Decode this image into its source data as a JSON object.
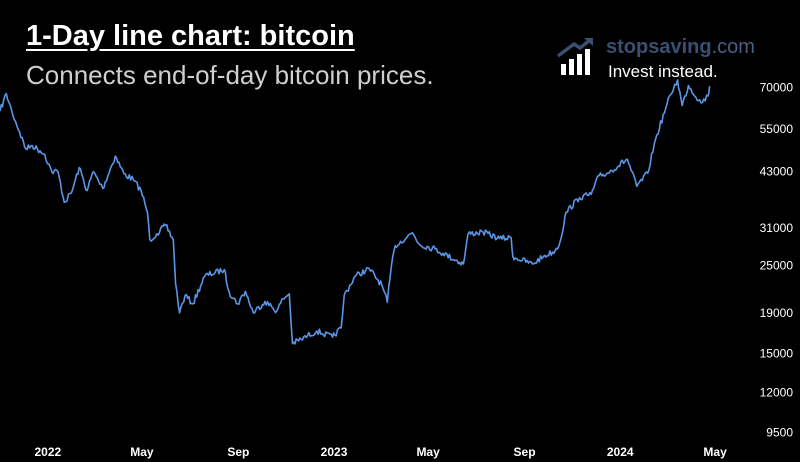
{
  "header": {
    "title": "1-Day line chart: bitcoin",
    "subtitle": "Connects end-of-day bitcoin prices."
  },
  "brand": {
    "name": "stopsaving",
    "domain": ".com",
    "tagline": "Invest instead.",
    "icon": "bar-chart-arrow-icon",
    "color": "#3a4f74"
  },
  "chart_data": {
    "type": "line",
    "title": "1-Day line chart: bitcoin",
    "subtitle": "Connects end-of-day bitcoin prices.",
    "yscale": "log",
    "ylim": [
      9000,
      82000
    ],
    "xlim": [
      "2021-11-01",
      "2024-05-20"
    ],
    "line_color": "#5b95e6",
    "grid": false,
    "y_ticks": [
      9500,
      12000,
      15000,
      19000,
      25000,
      31000,
      43000,
      55000,
      70000
    ],
    "x_ticks": [
      {
        "label": "2022",
        "date": "2022-01-01"
      },
      {
        "label": "May",
        "date": "2022-05-01"
      },
      {
        "label": "Sep",
        "date": "2022-09-01"
      },
      {
        "label": "2023",
        "date": "2023-01-01"
      },
      {
        "label": "May",
        "date": "2023-05-01"
      },
      {
        "label": "Sep",
        "date": "2023-09-01"
      },
      {
        "label": "2024",
        "date": "2024-01-01"
      },
      {
        "label": "May",
        "date": "2024-05-01"
      }
    ],
    "series": [
      {
        "name": "",
        "points": [
          [
            "2021-11-01",
            61000
          ],
          [
            "2021-11-09",
            67500
          ],
          [
            "2021-11-16",
            61000
          ],
          [
            "2021-11-26",
            54000
          ],
          [
            "2021-12-04",
            49000
          ],
          [
            "2021-12-12",
            50000
          ],
          [
            "2021-12-22",
            48500
          ],
          [
            "2021-12-28",
            47500
          ],
          [
            "2022-01-06",
            43000
          ],
          [
            "2022-01-14",
            43000
          ],
          [
            "2022-01-22",
            36000
          ],
          [
            "2022-01-31",
            38000
          ],
          [
            "2022-02-10",
            44000
          ],
          [
            "2022-02-20",
            38500
          ],
          [
            "2022-02-28",
            43000
          ],
          [
            "2022-03-12",
            39000
          ],
          [
            "2022-03-28",
            47000
          ],
          [
            "2022-04-08",
            42500
          ],
          [
            "2022-04-20",
            41000
          ],
          [
            "2022-04-30",
            38500
          ],
          [
            "2022-05-08",
            34000
          ],
          [
            "2022-05-11",
            29000
          ],
          [
            "2022-05-20",
            30000
          ],
          [
            "2022-05-31",
            31500
          ],
          [
            "2022-06-10",
            29000
          ],
          [
            "2022-06-13",
            22500
          ],
          [
            "2022-06-18",
            19000
          ],
          [
            "2022-06-25",
            21000
          ],
          [
            "2022-07-05",
            20000
          ],
          [
            "2022-07-20",
            23500
          ],
          [
            "2022-08-14",
            24400
          ],
          [
            "2022-08-20",
            21500
          ],
          [
            "2022-08-31",
            20000
          ],
          [
            "2022-09-10",
            21500
          ],
          [
            "2022-09-20",
            19000
          ],
          [
            "2022-10-05",
            20300
          ],
          [
            "2022-10-20",
            19200
          ],
          [
            "2022-10-28",
            20600
          ],
          [
            "2022-11-05",
            21200
          ],
          [
            "2022-11-09",
            15900
          ],
          [
            "2022-11-20",
            16300
          ],
          [
            "2022-12-10",
            17100
          ],
          [
            "2022-12-30",
            16500
          ],
          [
            "2023-01-10",
            17400
          ],
          [
            "2023-01-14",
            21000
          ],
          [
            "2023-01-28",
            23500
          ],
          [
            "2023-02-15",
            24500
          ],
          [
            "2023-03-03",
            22300
          ],
          [
            "2023-03-10",
            20200
          ],
          [
            "2023-03-15",
            24800
          ],
          [
            "2023-03-20",
            28000
          ],
          [
            "2023-04-11",
            30200
          ],
          [
            "2023-04-20",
            28200
          ],
          [
            "2023-05-10",
            27500
          ],
          [
            "2023-05-20",
            26800
          ],
          [
            "2023-06-15",
            25200
          ],
          [
            "2023-06-21",
            30000
          ],
          [
            "2023-07-10",
            30300
          ],
          [
            "2023-07-31",
            29200
          ],
          [
            "2023-08-15",
            29300
          ],
          [
            "2023-08-17",
            26300
          ],
          [
            "2023-09-11",
            25200
          ],
          [
            "2023-09-25",
            26300
          ],
          [
            "2023-10-10",
            27200
          ],
          [
            "2023-10-16",
            28500
          ],
          [
            "2023-10-24",
            34000
          ],
          [
            "2023-11-10",
            37000
          ],
          [
            "2023-11-25",
            37700
          ],
          [
            "2023-12-05",
            42000
          ],
          [
            "2023-12-15",
            42500
          ],
          [
            "2024-01-10",
            46200
          ],
          [
            "2024-01-22",
            39500
          ],
          [
            "2024-02-05",
            42600
          ],
          [
            "2024-02-15",
            51800
          ],
          [
            "2024-02-28",
            62000
          ],
          [
            "2024-03-05",
            67000
          ],
          [
            "2024-03-14",
            73100
          ],
          [
            "2024-03-20",
            63000
          ],
          [
            "2024-03-28",
            70700
          ],
          [
            "2024-04-13",
            64000
          ],
          [
            "2024-04-22",
            66600
          ],
          [
            "2024-04-24",
            70500
          ]
        ]
      }
    ]
  }
}
